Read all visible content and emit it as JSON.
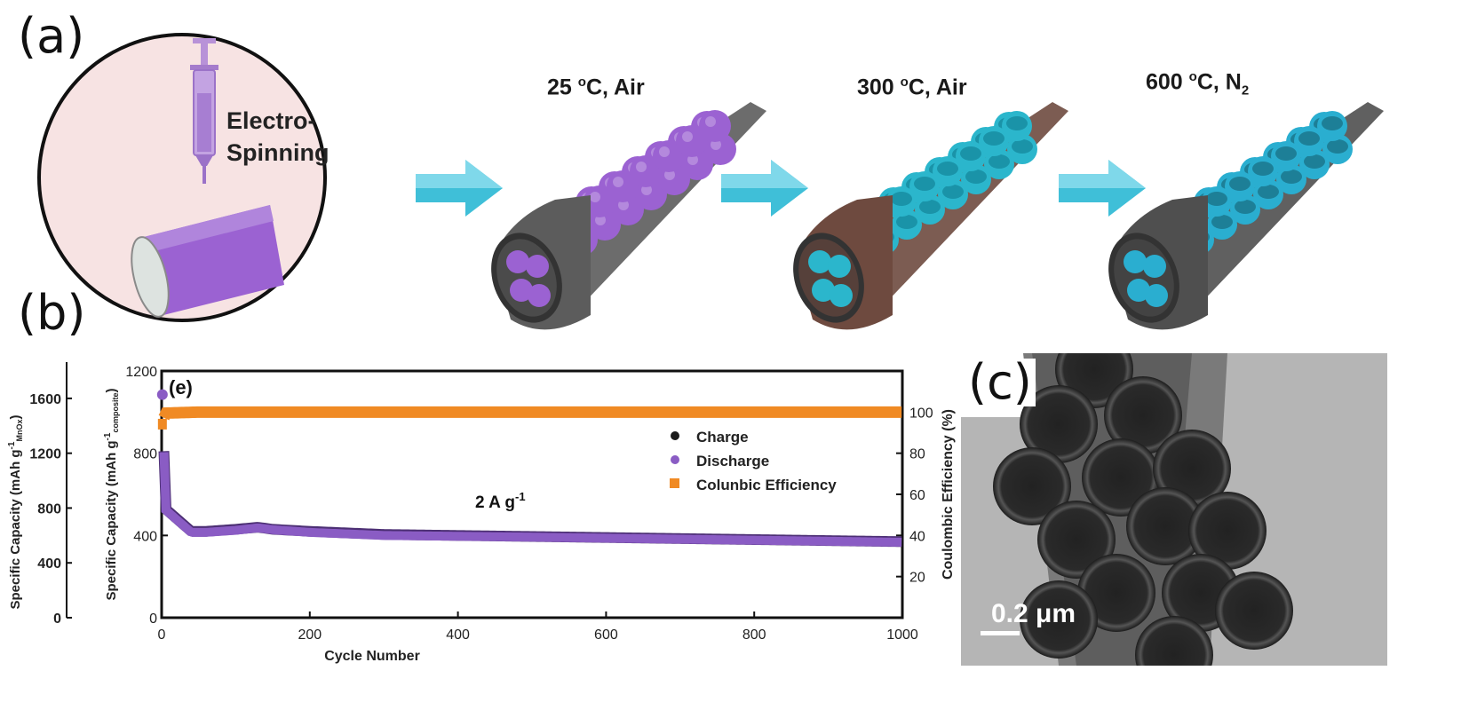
{
  "panel_a": {
    "letter": "(a)",
    "circle_label_line1": "Electro-",
    "circle_label_line2": "Spinning",
    "stages": [
      {
        "temp": "25 ",
        "deg": "o",
        "rest": "C, Air",
        "sub": ""
      },
      {
        "temp": "300 ",
        "deg": "o",
        "rest": "C, Air",
        "sub": ""
      },
      {
        "temp": "600 ",
        "deg": "o",
        "rest": "C, N",
        "sub": "2"
      }
    ],
    "colors": {
      "circle_bg": "#f7e3e3",
      "purple": "#9b62d2",
      "teal": "#2bb6cc",
      "tube_gray": "#5c5c5c",
      "tube_brown": "#6e4a3f",
      "arrow": "#3fbfd8"
    }
  },
  "panel_b": {
    "letter": "(b)",
    "inner_label": "(e)",
    "annotation_main": "2 A g",
    "annotation_sup": "-1",
    "chart_data": {
      "type": "scatter",
      "xlabel": "Cycle Number",
      "xlim": [
        0,
        1000
      ],
      "xticks": [
        "0",
        "200",
        "400",
        "600",
        "800",
        "1000"
      ],
      "ylabel_left_main": "Specific Capacity (mAh g",
      "ylabel_left_sup": "-1",
      "ylabel_left_sub": "composite",
      "ylabel_left_end": ")",
      "ylim_left": [
        0,
        1200
      ],
      "yticks_left": [
        "0",
        "400",
        "800",
        "1200"
      ],
      "ylabel_outer_main": "Specific Capacity (mAh g",
      "ylabel_outer_sup": "-1",
      "ylabel_outer_sub": "MnOx",
      "ylabel_outer_end": ")",
      "ylim_outer": [
        0,
        1800
      ],
      "yticks_outer": [
        "0",
        "400",
        "800",
        "1200",
        "1600"
      ],
      "ylabel_right": "Coulombic Efficiency (%)",
      "ylim_right": [
        0,
        120
      ],
      "yticks_right": [
        "20",
        "40",
        "60",
        "80",
        "100"
      ],
      "legend_position": "right-middle",
      "series": [
        {
          "name": "Charge",
          "color": "#1a1a1a",
          "axis": "left",
          "points": [
            [
              1,
              1090
            ],
            [
              5,
              530
            ],
            [
              40,
              420
            ],
            [
              60,
              420
            ],
            [
              100,
              430
            ],
            [
              130,
              440
            ],
            [
              150,
              430
            ],
            [
              200,
              420
            ],
            [
              300,
              405
            ],
            [
              400,
              400
            ],
            [
              500,
              395
            ],
            [
              600,
              390
            ],
            [
              700,
              385
            ],
            [
              800,
              380
            ],
            [
              900,
              375
            ],
            [
              1000,
              370
            ]
          ]
        },
        {
          "name": "Discharge",
          "color": "#8a5cc4",
          "axis": "left",
          "points": [
            [
              1,
              1085
            ],
            [
              5,
              525
            ],
            [
              40,
              415
            ],
            [
              60,
              415
            ],
            [
              100,
              425
            ],
            [
              130,
              437
            ],
            [
              150,
              428
            ],
            [
              200,
              415
            ],
            [
              300,
              400
            ],
            [
              400,
              396
            ],
            [
              500,
              392
            ],
            [
              600,
              387
            ],
            [
              700,
              382
            ],
            [
              800,
              377
            ],
            [
              900,
              372
            ],
            [
              1000,
              367
            ]
          ]
        },
        {
          "name": "Colunbic Efficiency",
          "color": "#f08a24",
          "axis": "right",
          "points": [
            [
              1,
              95
            ],
            [
              5,
              99.5
            ],
            [
              50,
              100
            ],
            [
              200,
              100
            ],
            [
              400,
              100
            ],
            [
              600,
              100
            ],
            [
              800,
              100
            ],
            [
              1000,
              100
            ]
          ]
        }
      ]
    }
  },
  "panel_c": {
    "letter": "(c)",
    "scale_bar_label": "0.2 μm"
  }
}
